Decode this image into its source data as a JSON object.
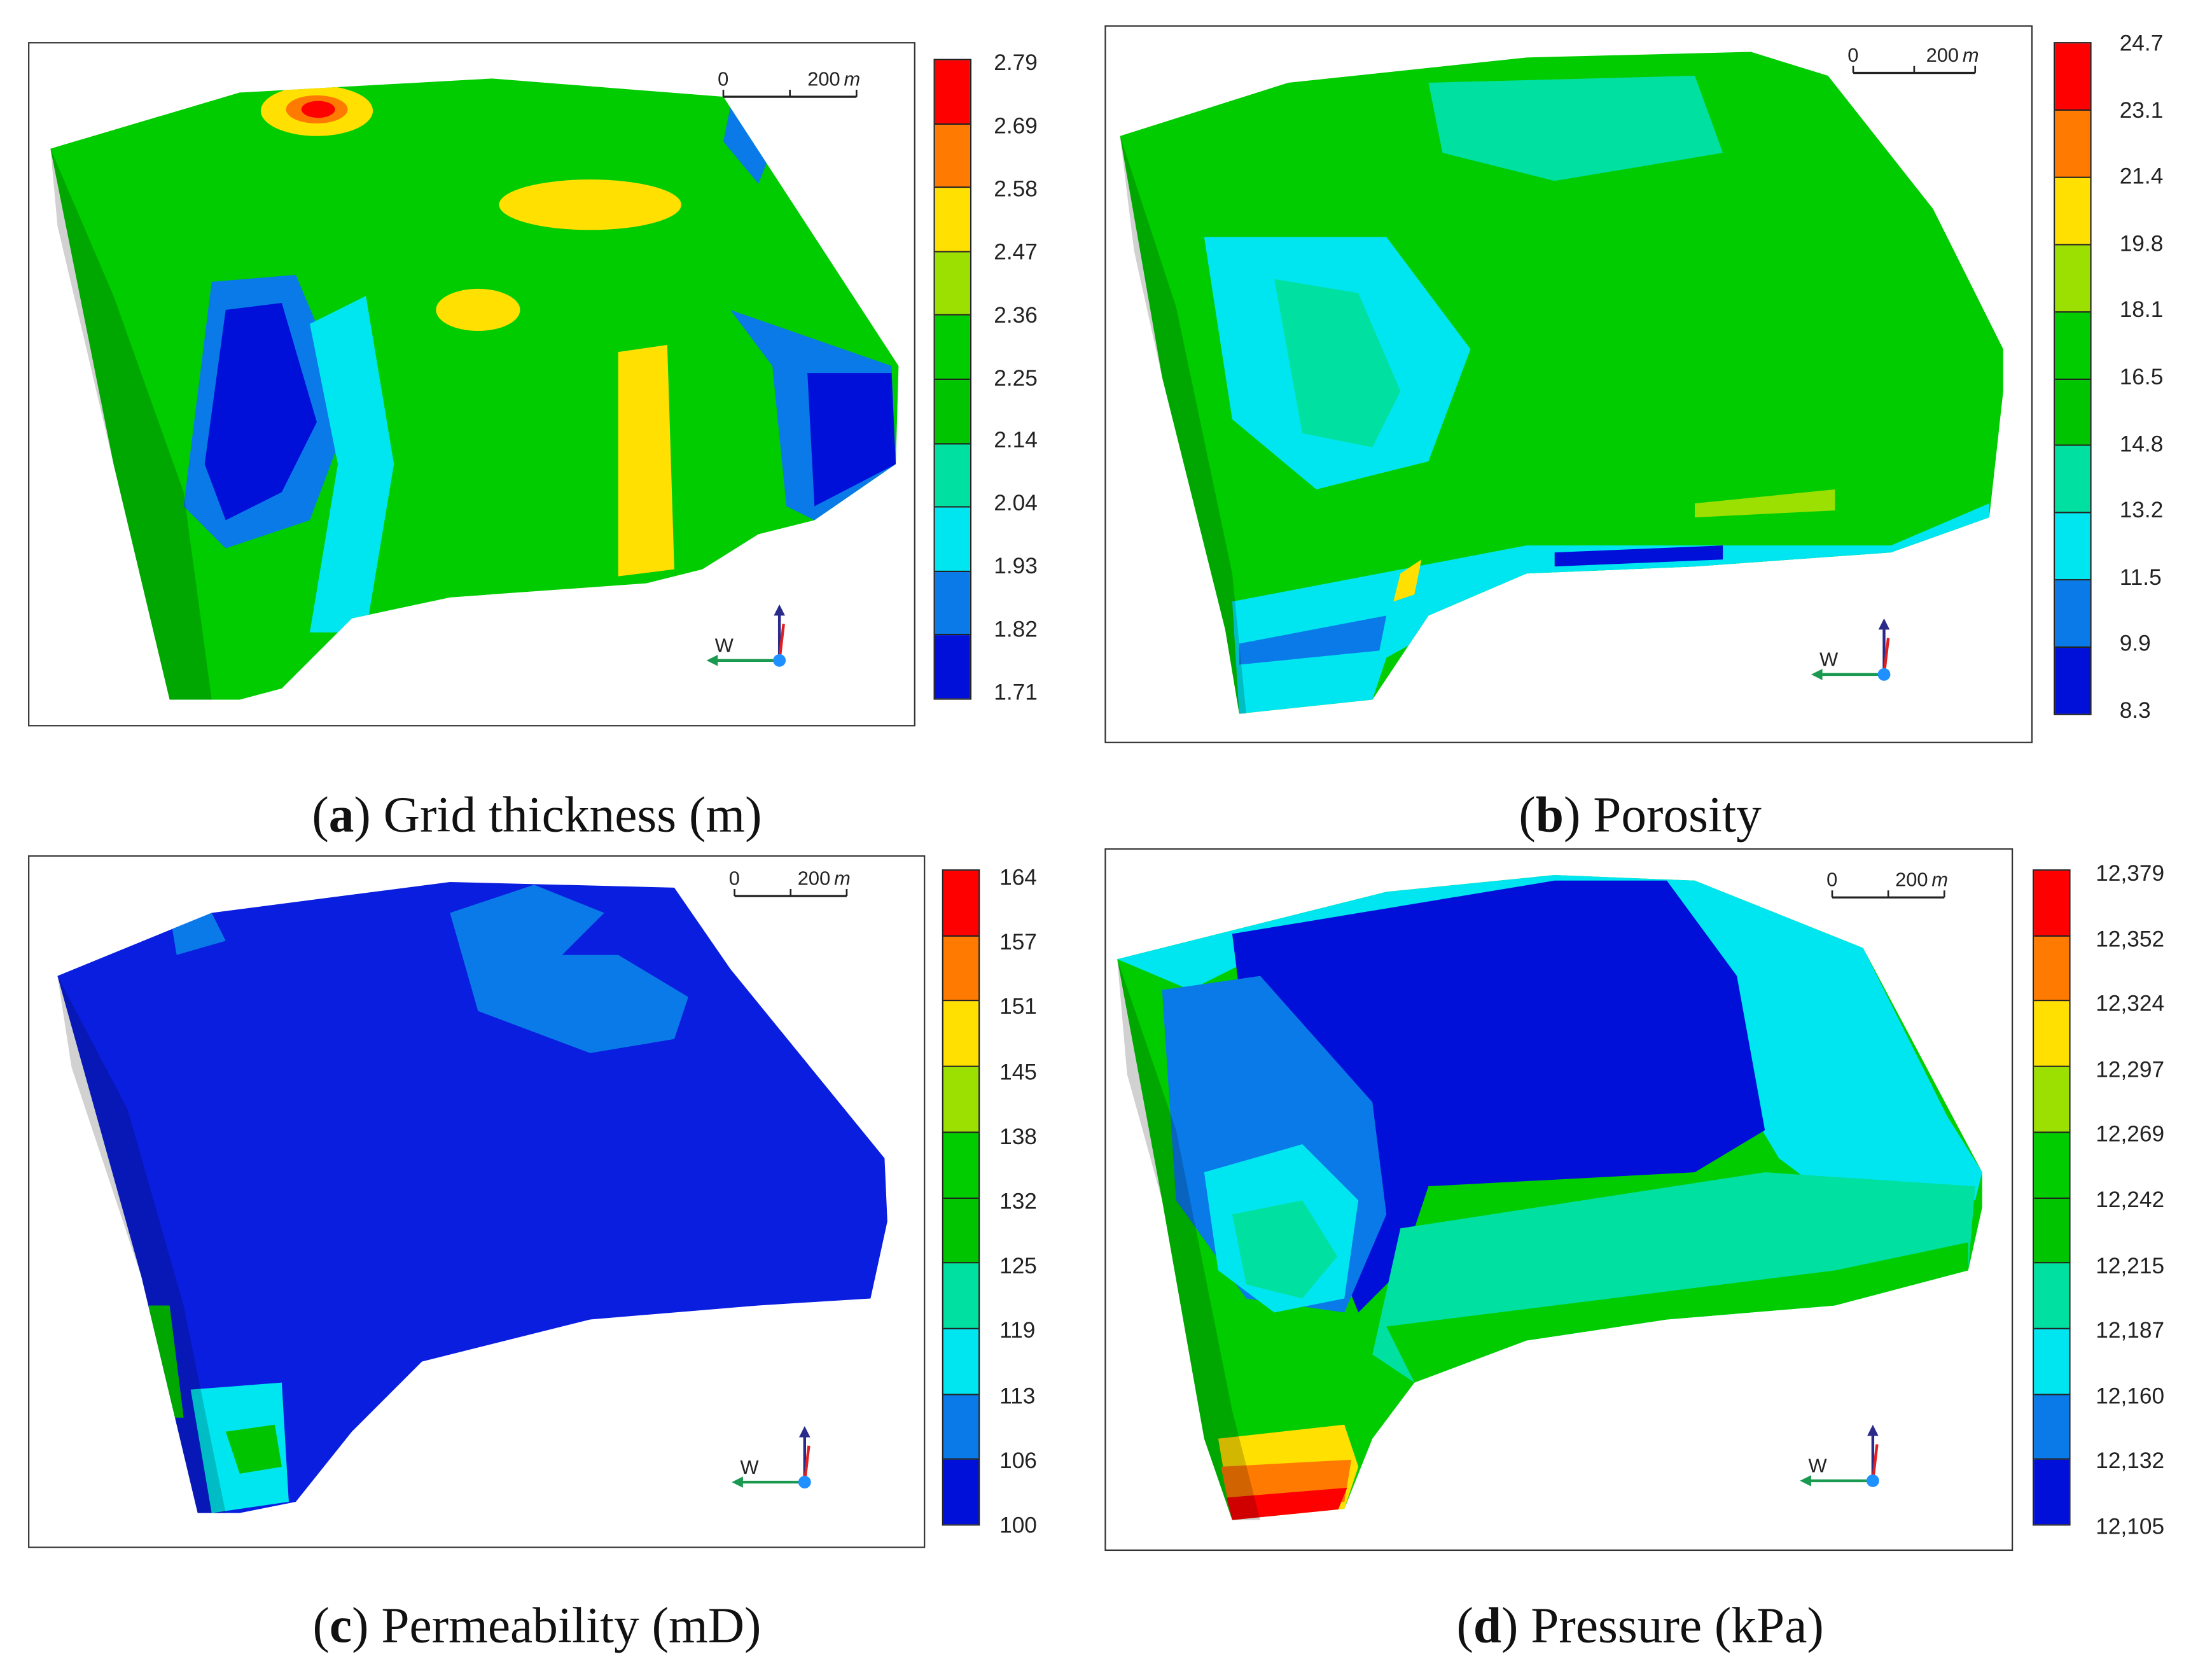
{
  "panels": [
    {
      "letter": "a",
      "title": "Grid thickness (m)",
      "ticks": [
        "2.79",
        "2.69",
        "2.58",
        "2.47",
        "2.36",
        "2.25",
        "2.14",
        "2.04",
        "1.93",
        "1.82",
        "1.71"
      ]
    },
    {
      "letter": "b",
      "title": "Porosity",
      "ticks": [
        "24.7",
        "23.1",
        "21.4",
        "19.8",
        "18.1",
        "16.5",
        "14.8",
        "13.2",
        "11.5",
        "9.9",
        "8.3"
      ]
    },
    {
      "letter": "c",
      "title": "Permeability (mD)",
      "ticks": [
        "164",
        "157",
        "151",
        "145",
        "138",
        "132",
        "125",
        "119",
        "113",
        "106",
        "100"
      ]
    },
    {
      "letter": "d",
      "title": "Pressure (kPa)",
      "ticks": [
        "12,379",
        "12,352",
        "12,324",
        "12,297",
        "12,269",
        "12,242",
        "12,215",
        "12,187",
        "12,160",
        "12,132",
        "12,105"
      ]
    }
  ],
  "scale_bar": {
    "start": "0",
    "end": "200",
    "unit": "m"
  },
  "compass": {
    "label": "W",
    "colors": {
      "west": "#1a9a50",
      "up": "#2a2a8a",
      "north": "#e02020",
      "origin": "#1e90ff"
    }
  },
  "colormap": [
    "#ff0000",
    "#ff7a00",
    "#ffe000",
    "#9be000",
    "#00cc00",
    "#00c400",
    "#00e0a0",
    "#00e6f0",
    "#0a7ae8",
    "#0010d8"
  ],
  "caption_paren_open": "(",
  "caption_paren_close": ")"
}
